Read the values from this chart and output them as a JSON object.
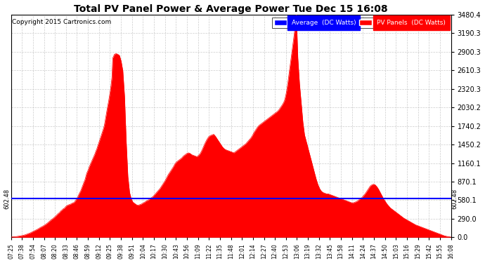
{
  "title": "Total PV Panel Power & Average Power Tue Dec 15 16:08",
  "copyright": "Copyright 2015 Cartronics.com",
  "average_value": 602.48,
  "y_max": 3480.4,
  "ytick_values": [
    0.0,
    290.0,
    580.1,
    870.1,
    1160.1,
    1450.2,
    1740.2,
    2030.2,
    2320.3,
    2610.3,
    2900.3,
    3190.3,
    3480.4
  ],
  "fill_color": "#FF0000",
  "average_color": "#0000FF",
  "background_color": "#FFFFFF",
  "grid_color": "#C0C0C0",
  "title_color": "#FF0000",
  "title_bg": "#000000",
  "legend_avg_bg": "#0000FF",
  "legend_pv_bg": "#FF0000",
  "xtick_labels": [
    "07:25",
    "07:38",
    "07:54",
    "08:07",
    "08:20",
    "08:33",
    "08:46",
    "08:59",
    "09:12",
    "09:25",
    "09:38",
    "09:51",
    "10:04",
    "10:17",
    "10:30",
    "10:43",
    "10:56",
    "11:09",
    "11:22",
    "11:35",
    "11:48",
    "12:01",
    "12:14",
    "12:27",
    "12:40",
    "12:53",
    "13:06",
    "13:19",
    "13:32",
    "13:45",
    "13:58",
    "14:11",
    "14:24",
    "14:37",
    "14:50",
    "15:03",
    "15:16",
    "15:29",
    "15:42",
    "15:55",
    "16:08"
  ],
  "profile_times": [
    7.417,
    7.5,
    7.583,
    7.65,
    7.7,
    7.75,
    7.8,
    7.85,
    7.9,
    7.95,
    8.0,
    8.05,
    8.1,
    8.15,
    8.2,
    8.25,
    8.3,
    8.35,
    8.383,
    8.4,
    8.417,
    8.433,
    8.45,
    8.483,
    8.5,
    8.533,
    8.567,
    8.6,
    8.633,
    8.667,
    8.683,
    8.7,
    8.717,
    8.733,
    8.75,
    8.767,
    8.8,
    8.833,
    8.867,
    8.883,
    8.9,
    8.917,
    8.933,
    8.95,
    8.967,
    9.0,
    9.033,
    9.067,
    9.083,
    9.1,
    9.117,
    9.133,
    9.15,
    9.167,
    9.183,
    9.2,
    9.217,
    9.233,
    9.25,
    9.267,
    9.283,
    9.3,
    9.317,
    9.333,
    9.35,
    9.367,
    9.383,
    9.4,
    9.417,
    9.433,
    9.467,
    9.5,
    9.533,
    9.567,
    9.6,
    9.633,
    9.667,
    9.7,
    9.733,
    9.767,
    9.8,
    9.833,
    9.867,
    9.9,
    9.933,
    9.967,
    10.0,
    10.033,
    10.067,
    10.1,
    10.133,
    10.167,
    10.2,
    10.233,
    10.267,
    10.3,
    10.333,
    10.367,
    10.4,
    10.433,
    10.467,
    10.5,
    10.533,
    10.567,
    10.6,
    10.633,
    10.667,
    10.7,
    10.733,
    10.767,
    10.8,
    10.833,
    10.867,
    10.9,
    10.933,
    10.967,
    11.0,
    11.033,
    11.067,
    11.1,
    11.133,
    11.167,
    11.2,
    11.233,
    11.267,
    11.3,
    11.333,
    11.367,
    11.4,
    11.433,
    11.467,
    11.5,
    11.533,
    11.567,
    11.6,
    11.633,
    11.667,
    11.7,
    11.733,
    11.767,
    11.8,
    11.833,
    11.867,
    11.9,
    11.933,
    11.967,
    12.0,
    12.033,
    12.067,
    12.1,
    12.133,
    12.167,
    12.2,
    12.233,
    12.267,
    12.3,
    12.333,
    12.367,
    12.4,
    12.433,
    12.467,
    12.5,
    12.533,
    12.567,
    12.6,
    12.633,
    12.667,
    12.7,
    12.733,
    12.767,
    12.8,
    12.833,
    12.85,
    12.867,
    12.883,
    12.9,
    12.917,
    12.933,
    12.95,
    12.967,
    12.983,
    13.0,
    13.017,
    13.033,
    13.05,
    13.067,
    13.083,
    13.1,
    13.133,
    13.167,
    13.2,
    13.233,
    13.267,
    13.3,
    13.333,
    13.367,
    13.4,
    13.433,
    13.467,
    13.5,
    13.533,
    13.567,
    13.6,
    13.633,
    13.667,
    13.7,
    13.733,
    13.767,
    13.8,
    13.833,
    13.867,
    13.9,
    13.933,
    13.967,
    14.0,
    14.033,
    14.067,
    14.1,
    14.133,
    14.167,
    14.2,
    14.233,
    14.267,
    14.3,
    14.333,
    14.367,
    14.4,
    14.433,
    14.467,
    14.5,
    14.533,
    14.567,
    14.6,
    14.633,
    14.667,
    14.7,
    14.733,
    14.767,
    14.8,
    14.833,
    14.867,
    14.9,
    14.933,
    14.967,
    15.0,
    15.033,
    15.067,
    15.1,
    15.133,
    15.167,
    15.2,
    15.233,
    15.267,
    15.3,
    15.333,
    15.367,
    15.4,
    15.433,
    15.467,
    15.5,
    15.533,
    15.567,
    15.6,
    15.633,
    15.667,
    15.7,
    15.733,
    15.767,
    15.8,
    15.833,
    15.867,
    15.9,
    15.933,
    15.967,
    16.0,
    16.05,
    16.1,
    16.133
  ],
  "profile_values": [
    5,
    10,
    20,
    30,
    40,
    55,
    70,
    90,
    110,
    130,
    155,
    175,
    200,
    230,
    265,
    295,
    330,
    370,
    390,
    410,
    420,
    430,
    445,
    460,
    480,
    500,
    510,
    520,
    535,
    545,
    560,
    580,
    600,
    620,
    650,
    680,
    730,
    800,
    870,
    900,
    950,
    1000,
    1030,
    1060,
    1100,
    1160,
    1220,
    1280,
    1310,
    1350,
    1380,
    1420,
    1460,
    1500,
    1540,
    1580,
    1620,
    1660,
    1700,
    1750,
    1820,
    1900,
    1980,
    2050,
    2120,
    2200,
    2280,
    2380,
    2500,
    2800,
    2860,
    2870,
    2860,
    2840,
    2750,
    2600,
    2200,
    1500,
    950,
    700,
    600,
    550,
    530,
    510,
    500,
    510,
    520,
    535,
    550,
    570,
    580,
    600,
    620,
    640,
    670,
    700,
    730,
    760,
    800,
    840,
    880,
    930,
    980,
    1020,
    1060,
    1100,
    1150,
    1180,
    1200,
    1220,
    1240,
    1270,
    1290,
    1310,
    1320,
    1310,
    1290,
    1280,
    1270,
    1260,
    1280,
    1310,
    1360,
    1420,
    1480,
    1530,
    1570,
    1590,
    1600,
    1610,
    1580,
    1540,
    1500,
    1460,
    1420,
    1390,
    1370,
    1360,
    1350,
    1340,
    1330,
    1320,
    1340,
    1360,
    1380,
    1400,
    1420,
    1440,
    1460,
    1490,
    1520,
    1550,
    1590,
    1640,
    1680,
    1720,
    1750,
    1770,
    1790,
    1810,
    1830,
    1850,
    1870,
    1890,
    1910,
    1930,
    1950,
    1970,
    2000,
    2040,
    2080,
    2130,
    2180,
    2240,
    2310,
    2400,
    2500,
    2600,
    2700,
    2800,
    2900,
    3000,
    3100,
    3200,
    3350,
    3480,
    3200,
    2800,
    2400,
    2100,
    1800,
    1600,
    1500,
    1400,
    1300,
    1200,
    1100,
    1000,
    900,
    820,
    760,
    720,
    700,
    690,
    680,
    680,
    670,
    660,
    650,
    640,
    630,
    620,
    610,
    600,
    590,
    580,
    570,
    560,
    550,
    540,
    540,
    550,
    560,
    580,
    600,
    620,
    650,
    680,
    720,
    760,
    800,
    820,
    830,
    820,
    790,
    750,
    700,
    650,
    600,
    560,
    520,
    490,
    460,
    440,
    420,
    400,
    380,
    360,
    340,
    320,
    300,
    285,
    270,
    255,
    240,
    225,
    210,
    195,
    185,
    175,
    165,
    155,
    145,
    135,
    125,
    115,
    105,
    95,
    85,
    75,
    65,
    55,
    45,
    35,
    25,
    15,
    8,
    4
  ]
}
